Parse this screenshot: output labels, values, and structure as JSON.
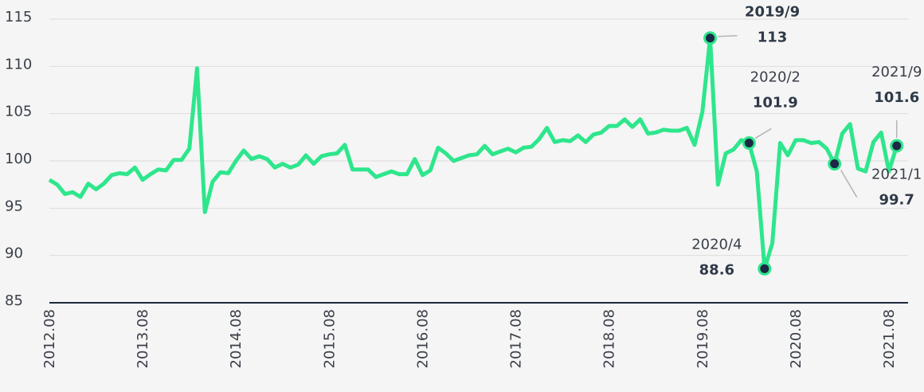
{
  "chart_data": {
    "type": "line",
    "categories": [
      "2012.08",
      null,
      null,
      null,
      null,
      null,
      null,
      null,
      null,
      null,
      null,
      null,
      "2013.08",
      null,
      null,
      null,
      null,
      null,
      null,
      null,
      null,
      null,
      null,
      null,
      "2014.08",
      null,
      null,
      null,
      null,
      null,
      null,
      null,
      null,
      null,
      null,
      null,
      "2015.08",
      null,
      null,
      null,
      null,
      null,
      null,
      null,
      null,
      null,
      null,
      null,
      "2016.08",
      null,
      null,
      null,
      null,
      null,
      null,
      null,
      null,
      null,
      null,
      null,
      "2017.08",
      null,
      null,
      null,
      null,
      null,
      null,
      null,
      null,
      null,
      null,
      null,
      "2018.08",
      null,
      null,
      null,
      null,
      null,
      null,
      null,
      null,
      null,
      null,
      null,
      "2019.08",
      null,
      null,
      null,
      null,
      null,
      null,
      null,
      null,
      null,
      null,
      null,
      "2020.08",
      null,
      null,
      null,
      null,
      null,
      null,
      null,
      null,
      null,
      null,
      null,
      "2021.08",
      null
    ],
    "values": [
      98.0,
      97.5,
      96.5,
      96.7,
      96.2,
      97.6,
      97.0,
      97.6,
      98.5,
      98.7,
      98.6,
      99.3,
      98.0,
      98.6,
      99.1,
      99.0,
      100.1,
      100.1,
      101.3,
      109.8,
      94.6,
      97.8,
      98.8,
      98.7,
      100.0,
      101.1,
      100.2,
      100.5,
      100.2,
      99.3,
      99.7,
      99.3,
      99.6,
      100.6,
      99.7,
      100.5,
      100.7,
      100.8,
      101.7,
      99.1,
      99.1,
      99.1,
      98.3,
      98.6,
      98.9,
      98.6,
      98.6,
      100.2,
      98.5,
      99.0,
      101.4,
      100.8,
      100.0,
      100.3,
      100.6,
      100.7,
      101.6,
      100.7,
      101.0,
      101.3,
      100.9,
      101.4,
      101.5,
      102.3,
      103.5,
      102.0,
      102.2,
      102.1,
      102.7,
      102.0,
      102.8,
      103.0,
      103.7,
      103.7,
      104.4,
      103.6,
      104.4,
      102.9,
      103.0,
      103.3,
      103.2,
      103.2,
      103.5,
      101.7,
      105.2,
      113,
      97.5,
      100.8,
      101.2,
      102.2,
      101.9,
      98.9,
      88.6,
      91.3,
      101.9,
      100.6,
      102.2,
      102.2,
      101.9,
      102.0,
      101.3,
      99.7,
      102.9,
      103.9,
      99.2,
      98.9,
      102.0,
      103.0,
      98.9,
      101.6
    ],
    "color": "#2ee68c",
    "marker_color": "#1c2846",
    "ylim": [
      85,
      115
    ],
    "yticks": [
      85,
      90,
      95,
      100,
      105,
      110,
      115
    ],
    "grid": true,
    "annotations": [
      {
        "text": "2019/9"
      },
      {
        "text": "2020/2"
      },
      {
        "text": "2020/4"
      },
      {
        "text": "2021/1"
      },
      {
        "text": "2021/9"
      }
    ]
  }
}
